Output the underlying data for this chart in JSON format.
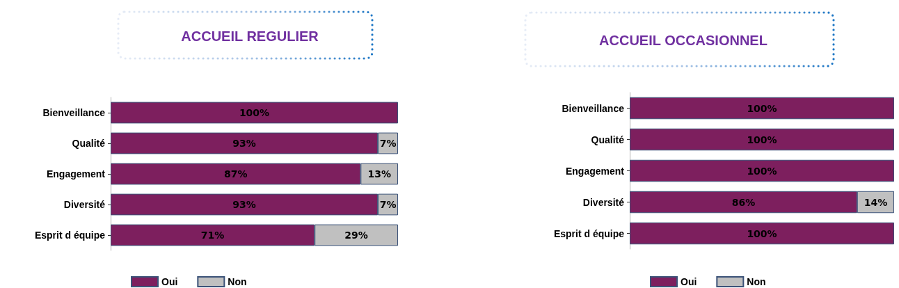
{
  "chart_data": [
    {
      "type": "bar",
      "title": "ACCUEIL REGULIER",
      "orientation": "horizontal",
      "stacked": true,
      "categories": [
        "Bienveillance",
        "Qualité",
        "Engagement",
        "Diversité",
        "Esprit d équipe"
      ],
      "series": [
        {
          "name": "Oui",
          "color": "#7d1f5e",
          "values": [
            100,
            93,
            87,
            93,
            71
          ],
          "value_labels": [
            "100%",
            "93%",
            "87%",
            "93%",
            "71%"
          ]
        },
        {
          "name": "Non",
          "color": "#c0c0c0",
          "values": [
            null,
            7,
            13,
            7,
            29
          ],
          "value_labels": [
            null,
            "7%",
            "13%",
            "7%",
            "29%"
          ]
        }
      ],
      "xlim": [
        0,
        100
      ],
      "tick_labels": "y",
      "legend": "bottom"
    },
    {
      "type": "bar",
      "title": "ACCUEIL OCCASIONNEL",
      "orientation": "horizontal",
      "stacked": true,
      "categories": [
        "Bienveillance",
        "Qualité",
        "Engagement",
        "Diversité",
        "Esprit d équipe"
      ],
      "series": [
        {
          "name": "Oui",
          "color": "#7d1f5e",
          "values": [
            100,
            100,
            100,
            86,
            100
          ],
          "value_labels": [
            "100%",
            "100%",
            "100%",
            "86%",
            "100%"
          ]
        },
        {
          "name": "Non",
          "color": "#c0c0c0",
          "values": [
            null,
            null,
            null,
            14,
            null
          ],
          "value_labels": [
            null,
            null,
            null,
            "14%",
            null
          ]
        }
      ],
      "xlim": [
        0,
        100
      ],
      "tick_labels": "y",
      "legend": "bottom"
    }
  ]
}
